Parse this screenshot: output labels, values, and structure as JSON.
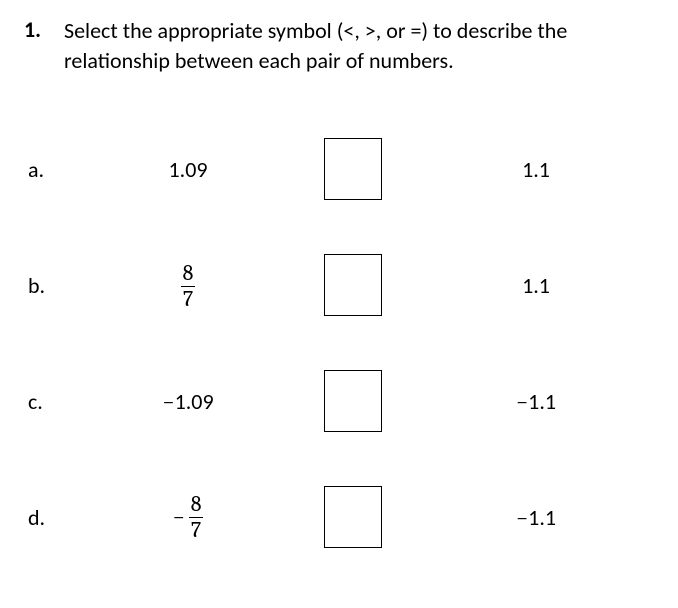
{
  "question": {
    "number": "1.",
    "text": "Select the appropriate symbol (<, >, or =) to describe the relationship between each pair of numbers."
  },
  "rows": [
    {
      "label": "a.",
      "left_type": "plain",
      "left": "1.09",
      "right": "1.1"
    },
    {
      "label": "b.",
      "left_type": "fraction",
      "num": "8",
      "den": "7",
      "right": "1.1"
    },
    {
      "label": "c.",
      "left_type": "neg_plain",
      "left": "1.09",
      "right_neg": true,
      "right": "1.1"
    },
    {
      "label": "d.",
      "left_type": "neg_fraction",
      "num": "8",
      "den": "7",
      "right_neg": true,
      "right": "1.1"
    }
  ],
  "colors": {
    "text": "#000000",
    "background": "#ffffff",
    "box_border": "#000000"
  }
}
